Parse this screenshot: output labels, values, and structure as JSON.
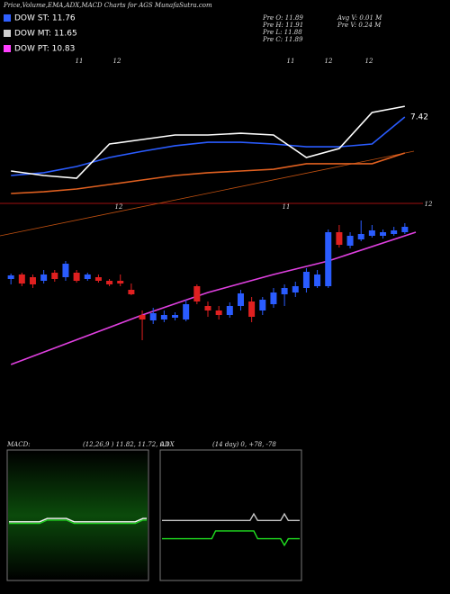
{
  "legend": [
    {
      "label": "DOW ST: 11.76",
      "color": "#3060ff"
    },
    {
      "label": "DOW MT: 11.65",
      "color": "#d0d0d0"
    },
    {
      "label": "DOW PT: 10.83",
      "color": "#ff40ff"
    }
  ],
  "info": [
    "Pre  O: 11.89",
    "Pre  H: 11.91",
    "Pre  L: 11.88",
    "Pre  C: 11.89",
    "Avg  V: 0.01  M",
    "Pre  V: 0.24  M"
  ],
  "chart_data": [
    {
      "type": "line",
      "title": "Price,Volume,EMA,ADX,MACD Charts for AGS MunafaSutra.com",
      "annotations": [
        "11",
        "12",
        "11",
        "12",
        "12",
        "7.42"
      ],
      "x": [
        0,
        3,
        6,
        9,
        12,
        15,
        18,
        21,
        24,
        27,
        30,
        33,
        36
      ],
      "xlim": [
        -1,
        37
      ],
      "ylim": [
        10.5,
        12.5
      ],
      "series": [
        {
          "color": "#e06020",
          "values": [
            10.66,
            10.69,
            10.74,
            10.82,
            10.9,
            10.98,
            11.03,
            11.06,
            11.09,
            11.19,
            11.19,
            11.19,
            11.38
          ]
        },
        {
          "color": "#2a5cff",
          "values": [
            10.98,
            11.03,
            11.14,
            11.3,
            11.41,
            11.51,
            11.57,
            11.57,
            11.54,
            11.49,
            11.49,
            11.54,
            12.02
          ]
        },
        {
          "color": "#ffffff",
          "values": [
            11.06,
            10.98,
            10.93,
            11.54,
            11.62,
            11.7,
            11.7,
            11.73,
            11.7,
            11.3,
            11.46,
            12.1,
            12.21
          ]
        }
      ]
    },
    {
      "type": "candlestick",
      "annotations": [
        "12",
        "11",
        "12"
      ],
      "xlim": [
        -1,
        37
      ],
      "ylim": [
        10.2,
        12.1
      ],
      "up_color": "#2a5cff",
      "down_color": "#e02020",
      "open": [
        11.3,
        11.35,
        11.32,
        11.28,
        11.37,
        11.32,
        11.37,
        11.3,
        11.32,
        11.28,
        11.28,
        11.18,
        10.9,
        10.84,
        10.85,
        10.87,
        10.85,
        11.22,
        11.0,
        10.95,
        10.9,
        11.0,
        11.05,
        10.95,
        11.02,
        11.13,
        11.15,
        11.2,
        11.22,
        11.22,
        11.82,
        11.67,
        11.74,
        11.78,
        11.78,
        11.8,
        11.82
      ],
      "close": [
        11.34,
        11.25,
        11.24,
        11.35,
        11.3,
        11.47,
        11.28,
        11.35,
        11.28,
        11.24,
        11.25,
        11.13,
        10.85,
        10.92,
        10.9,
        10.9,
        11.02,
        11.05,
        10.95,
        10.9,
        11.0,
        11.14,
        10.88,
        11.07,
        11.15,
        11.2,
        11.22,
        11.38,
        11.35,
        11.82,
        11.68,
        11.78,
        11.8,
        11.84,
        11.82,
        11.84,
        11.88
      ],
      "high": [
        11.36,
        11.37,
        11.35,
        11.4,
        11.4,
        11.5,
        11.4,
        11.37,
        11.35,
        11.3,
        11.35,
        11.25,
        10.95,
        10.98,
        10.95,
        10.93,
        11.07,
        11.24,
        11.05,
        11.0,
        11.04,
        11.18,
        11.1,
        11.1,
        11.2,
        11.24,
        11.27,
        11.42,
        11.4,
        11.85,
        11.9,
        11.82,
        11.95,
        11.9,
        11.85,
        11.88,
        11.92
      ],
      "low": [
        11.24,
        11.22,
        11.2,
        11.25,
        11.27,
        11.28,
        11.26,
        11.28,
        11.26,
        11.22,
        11.22,
        11.12,
        10.62,
        10.8,
        10.82,
        10.84,
        10.83,
        11.02,
        10.88,
        10.85,
        10.87,
        10.95,
        10.82,
        10.9,
        10.98,
        11.0,
        11.1,
        11.15,
        11.2,
        11.2,
        11.65,
        11.64,
        11.72,
        11.76,
        11.75,
        11.78,
        11.8
      ],
      "series": [
        {
          "color": "#e040e0",
          "x": [
            0,
            12,
            18,
            24,
            29,
            37
          ],
          "values": [
            10.35,
            10.9,
            11.15,
            11.35,
            11.5,
            11.82
          ]
        }
      ]
    },
    {
      "type": "line",
      "title": "MACD:",
      "subtitle": "(12,26,9 ) 11.82, 11.72, 0.1",
      "x": [
        0,
        8,
        10,
        15,
        17,
        33,
        35,
        36
      ],
      "xlim": [
        0,
        36
      ],
      "ylim": [
        -2,
        2
      ],
      "series": [
        {
          "color": "#ffffff",
          "values": [
            -0.2,
            -0.2,
            -0.1,
            -0.1,
            -0.2,
            -0.2,
            -0.1,
            -0.1
          ]
        },
        {
          "color": "#20d020",
          "values": [
            -0.25,
            -0.25,
            -0.15,
            -0.15,
            -0.25,
            -0.25,
            -0.15,
            -0.15
          ]
        }
      ]
    },
    {
      "type": "line",
      "title": "ADX",
      "subtitle": "(14  day) 0, +78, -78",
      "x": [
        0,
        13,
        14,
        23,
        24,
        25,
        31,
        32,
        33,
        36
      ],
      "xlim": [
        0,
        36
      ],
      "ylim": [
        0,
        100
      ],
      "series": [
        {
          "color": "#c8c8c8",
          "values": [
            46,
            46,
            46,
            46,
            51,
            46,
            46,
            51,
            46,
            46
          ]
        },
        {
          "color": "#20e020",
          "values": [
            32,
            32,
            38,
            38,
            38,
            32,
            32,
            27,
            32,
            32
          ]
        }
      ]
    }
  ]
}
